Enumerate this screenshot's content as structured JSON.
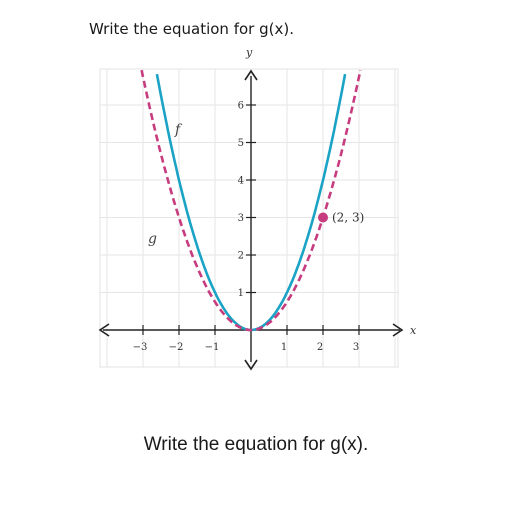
{
  "question": {
    "top_text": "Write the equation for g(x).",
    "bottom_text": "Write the equation for g(x)."
  },
  "chart_data": {
    "type": "line",
    "title": "",
    "xlabel": "x",
    "ylabel": "y",
    "xlim": [
      -4.3,
      4.3
    ],
    "ylim": [
      -1,
      7
    ],
    "x_ticks": [
      -3,
      -2,
      -1,
      1,
      2,
      3
    ],
    "x_tick_labels": [
      "−3",
      "−2",
      "−1",
      "1",
      "2",
      "3"
    ],
    "y_ticks": [
      1,
      2,
      3,
      4,
      5,
      6
    ],
    "y_tick_labels": [
      "1",
      "2",
      "3",
      "4",
      "5",
      "6"
    ],
    "grid": true,
    "series": [
      {
        "name": "f",
        "style": "solid",
        "color": "#1ba3c6",
        "formula": "x^2",
        "x_range": [
          -2.75,
          2.75
        ]
      },
      {
        "name": "g",
        "style": "dashed",
        "color": "#c73c7f",
        "formula": "0.75x^2",
        "x_range": [
          -3.2,
          3.2
        ]
      }
    ],
    "points": [
      {
        "x": 2,
        "y": 3,
        "label": "(2, 3)",
        "color": "#c73c7f"
      }
    ]
  }
}
